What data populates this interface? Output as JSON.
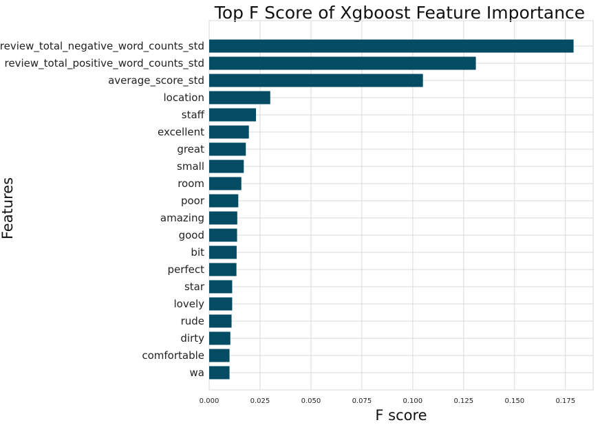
{
  "chart_data": {
    "type": "bar",
    "orientation": "horizontal",
    "title": "Top F Score of Xgboost Feature Importance",
    "xlabel": "F score",
    "ylabel": "Features",
    "xlim": [
      0,
      0.1886
    ],
    "xticks": [
      "0.000",
      "0.025",
      "0.050",
      "0.075",
      "0.100",
      "0.125",
      "0.150",
      "0.175"
    ],
    "grid": true,
    "bar_color": "#034c63",
    "categories": [
      "review_total_negative_word_counts_std",
      "review_total_positive_word_counts_std",
      "average_score_std",
      "location",
      "staff",
      "excellent",
      "great",
      "small",
      "room",
      "poor",
      "amazing",
      "good",
      "bit",
      "perfect",
      "star",
      "lovely",
      "rude",
      "dirty",
      "comfortable",
      "wa"
    ],
    "values": [
      0.179,
      0.131,
      0.105,
      0.03,
      0.023,
      0.0195,
      0.018,
      0.017,
      0.0158,
      0.0143,
      0.0138,
      0.0137,
      0.0135,
      0.0134,
      0.0113,
      0.0113,
      0.011,
      0.0104,
      0.01,
      0.01
    ]
  }
}
